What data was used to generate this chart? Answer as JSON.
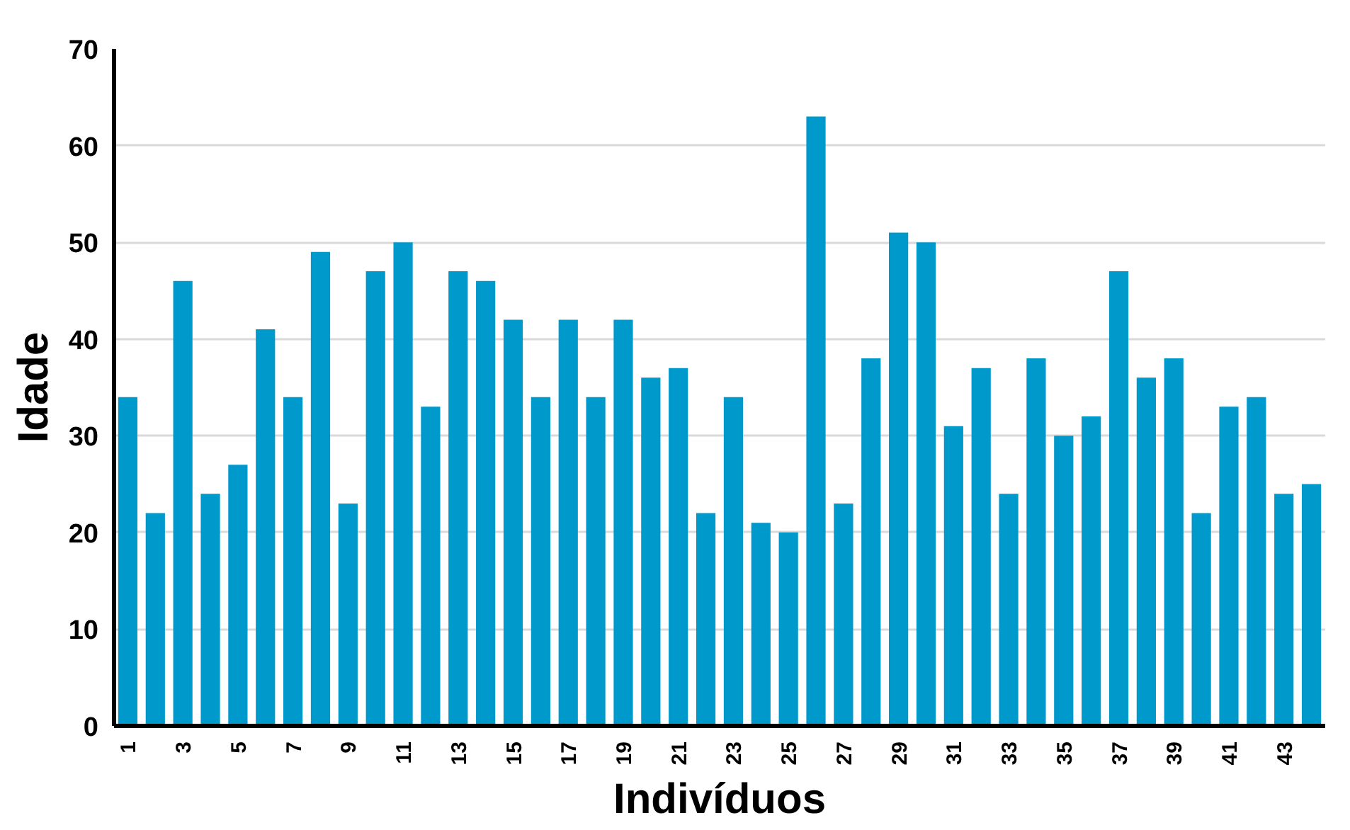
{
  "chart_data": {
    "type": "bar",
    "xlabel": "Indivíduos",
    "ylabel": "Idade",
    "categories": [
      "1",
      null,
      "3",
      null,
      "5",
      null,
      "7",
      null,
      "9",
      null,
      "11",
      null,
      "13",
      null,
      "15",
      null,
      "17",
      null,
      "19",
      null,
      "21",
      null,
      "23",
      null,
      "25",
      null,
      "27",
      null,
      "29",
      null,
      "31",
      null,
      "33",
      null,
      "35",
      null,
      "37",
      null,
      "39",
      null,
      "41",
      null,
      "43",
      null
    ],
    "values": [
      34,
      22,
      46,
      24,
      27,
      41,
      34,
      49,
      23,
      47,
      50,
      33,
      47,
      46,
      42,
      34,
      42,
      34,
      42,
      36,
      37,
      22,
      34,
      21,
      20,
      63,
      23,
      38,
      51,
      50,
      31,
      37,
      24,
      38,
      30,
      32,
      47,
      36,
      38,
      22,
      33,
      34,
      24,
      25
    ],
    "color": "#0099cc",
    "ylim": [
      0,
      70
    ],
    "yticks": [
      0,
      10,
      20,
      30,
      40,
      50,
      60,
      70
    ],
    "grid": "y"
  }
}
